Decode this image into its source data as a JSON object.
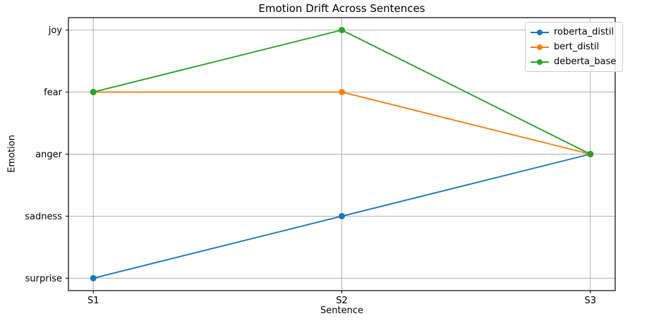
{
  "chart_data": {
    "type": "line",
    "title": "Emotion Drift Across Sentences",
    "xlabel": "Sentence",
    "ylabel": "Emotion",
    "x": [
      "S1",
      "S2",
      "S3"
    ],
    "y_categories_bottom_to_top": [
      "surprise",
      "sadness",
      "anger",
      "fear",
      "joy"
    ],
    "series": [
      {
        "name": "roberta_distil",
        "color": "#1f77b4",
        "values": [
          "surprise",
          "sadness",
          "anger"
        ]
      },
      {
        "name": "bert_distil",
        "color": "#ff7f0e",
        "values": [
          "fear",
          "fear",
          "anger"
        ]
      },
      {
        "name": "deberta_base",
        "color": "#2ca02c",
        "values": [
          "fear",
          "joy",
          "anger"
        ]
      }
    ],
    "legend_position": "top-right",
    "grid": true,
    "grid_color": "#b0b0b0",
    "spine_color": "#000000",
    "background_color": "#ffffff"
  }
}
